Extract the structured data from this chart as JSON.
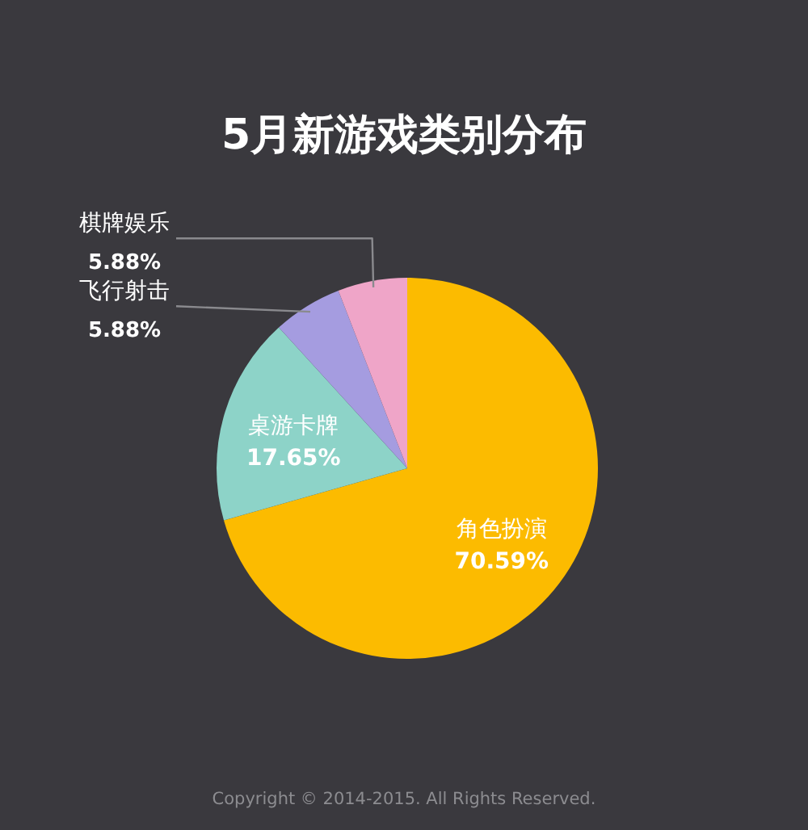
{
  "chart_data": {
    "type": "pie",
    "title": "5月新游戏类别分布",
    "categories": [
      "角色扮演",
      "桌游卡牌",
      "飞行射击",
      "棋牌娱乐"
    ],
    "values": [
      70.59,
      17.65,
      5.88,
      5.88
    ],
    "value_labels": [
      "70.59%",
      "17.65%",
      "5.88%",
      "5.88%"
    ],
    "colors": [
      "#fcbb00",
      "#8dd3c8",
      "#a59ce0",
      "#efa5c8"
    ],
    "annotations": [
      "Copyright © 2014-2015. All Rights Reserved."
    ]
  }
}
